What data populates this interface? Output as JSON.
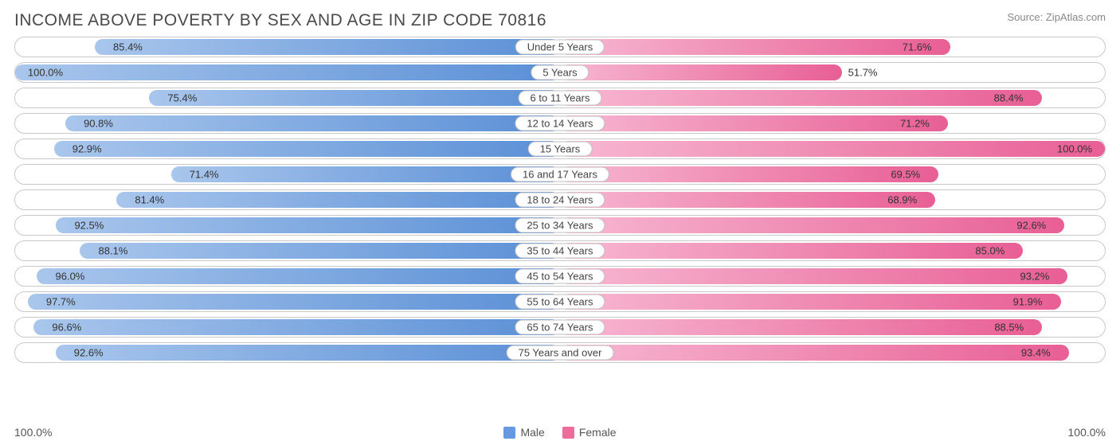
{
  "title": "INCOME ABOVE POVERTY BY SEX AND AGE IN ZIP CODE 70816",
  "source": "Source: ZipAtlas.com",
  "axis": {
    "left": "100.0%",
    "right": "100.0%",
    "max": 100.0
  },
  "legend": {
    "male": {
      "label": "Male",
      "color": "#6699dd"
    },
    "female": {
      "label": "Female",
      "color": "#ed6c9b"
    }
  },
  "style": {
    "row_border": "#c9c9c9",
    "label_border": "#bfbfbf",
    "background": "#ffffff",
    "value_fontsize": 13,
    "title_fontsize": 21,
    "male_gradient": [
      "#a9c6ec",
      "#5a8fd6"
    ],
    "female_gradient": [
      "#f7b8d2",
      "#e85f95"
    ]
  },
  "rows": [
    {
      "label": "Under 5 Years",
      "male": 85.4,
      "female": 71.6
    },
    {
      "label": "5 Years",
      "male": 100.0,
      "female": 51.7
    },
    {
      "label": "6 to 11 Years",
      "male": 75.4,
      "female": 88.4
    },
    {
      "label": "12 to 14 Years",
      "male": 90.8,
      "female": 71.2
    },
    {
      "label": "15 Years",
      "male": 92.9,
      "female": 100.0
    },
    {
      "label": "16 and 17 Years",
      "male": 71.4,
      "female": 69.5
    },
    {
      "label": "18 to 24 Years",
      "male": 81.4,
      "female": 68.9
    },
    {
      "label": "25 to 34 Years",
      "male": 92.5,
      "female": 92.6
    },
    {
      "label": "35 to 44 Years",
      "male": 88.1,
      "female": 85.0
    },
    {
      "label": "45 to 54 Years",
      "male": 96.0,
      "female": 93.2
    },
    {
      "label": "55 to 64 Years",
      "male": 97.7,
      "female": 91.9
    },
    {
      "label": "65 to 74 Years",
      "male": 96.6,
      "female": 88.5
    },
    {
      "label": "75 Years and over",
      "male": 92.6,
      "female": 93.4
    }
  ]
}
